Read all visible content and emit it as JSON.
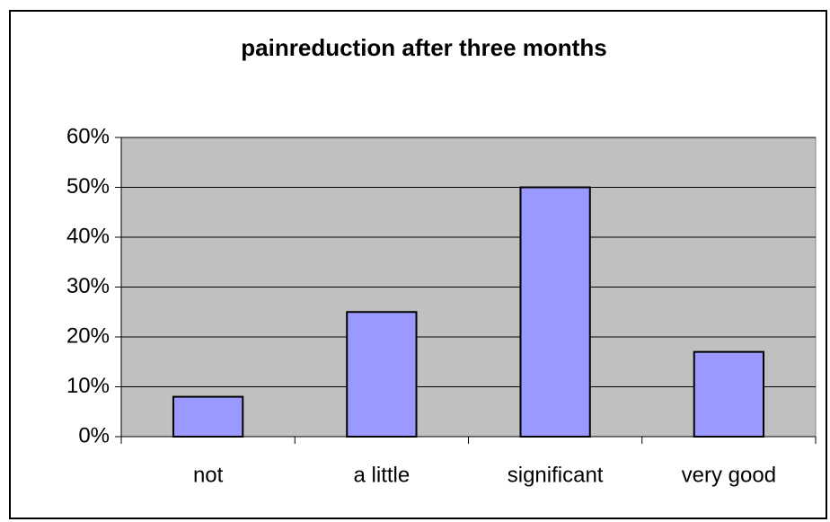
{
  "chart_data": {
    "type": "bar",
    "title": "painreduction after three months",
    "categories": [
      "not",
      "a little",
      "significant",
      "very good"
    ],
    "values": [
      8,
      25,
      50,
      17
    ],
    "color": "#9999ff",
    "ylim": [
      0,
      60
    ],
    "yticks": [
      {
        "value": 0,
        "label": "0%"
      },
      {
        "value": 10,
        "label": "10%"
      },
      {
        "value": 20,
        "label": "20%"
      },
      {
        "value": 30,
        "label": "30%"
      },
      {
        "value": 40,
        "label": "40%"
      },
      {
        "value": 50,
        "label": "50%"
      },
      {
        "value": 60,
        "label": "60%"
      }
    ],
    "grid": true
  }
}
